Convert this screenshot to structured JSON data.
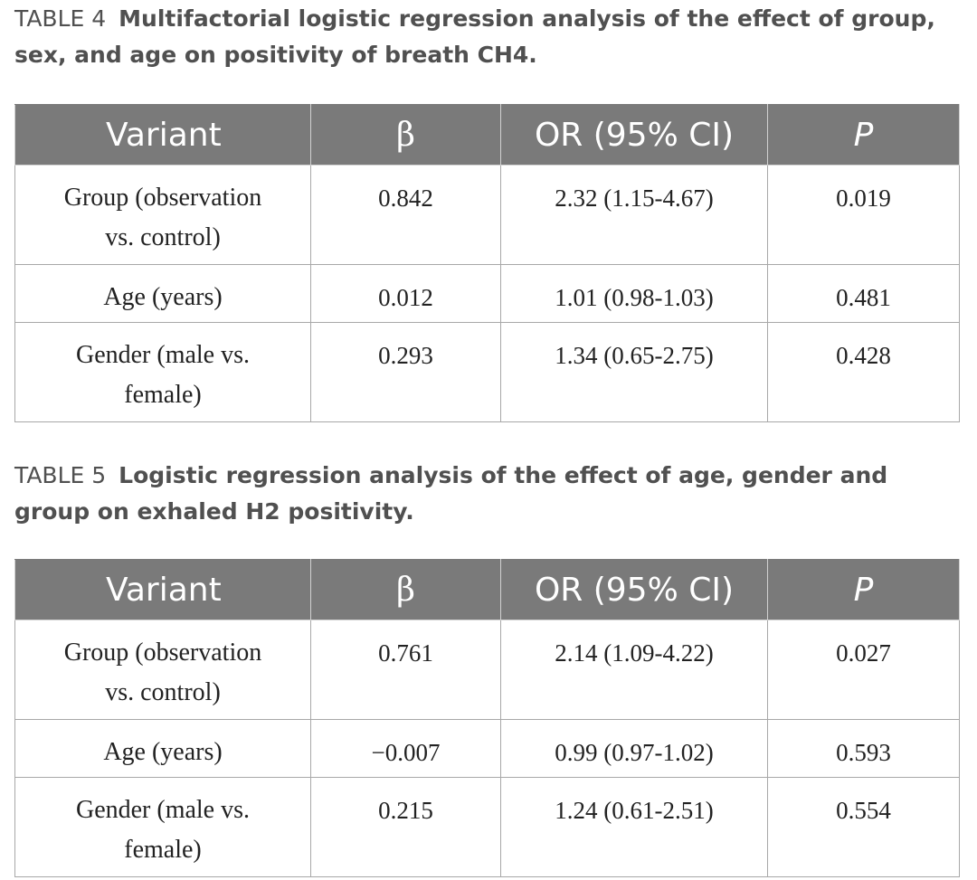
{
  "tables": [
    {
      "label": "TABLE 4",
      "title": "Multifactorial logistic regression analysis of the effect of group, sex, and age on positivity of breath CH4.",
      "headers": [
        "Variant",
        "β",
        "OR (95% CI)",
        "P"
      ],
      "rows": [
        {
          "variant_line1": "Group (observation",
          "variant_line2": "vs. control)",
          "beta": "0.842",
          "or_ci": "2.32 (1.15-4.67)",
          "p": "0.019"
        },
        {
          "variant_line1": "Age (years)",
          "variant_line2": "",
          "beta": "0.012",
          "or_ci": "1.01 (0.98-1.03)",
          "p": "0.481"
        },
        {
          "variant_line1": "Gender (male vs.",
          "variant_line2": "female)",
          "beta": "0.293",
          "or_ci": "1.34 (0.65-2.75)",
          "p": "0.428"
        }
      ]
    },
    {
      "label": "TABLE 5",
      "title": "Logistic regression analysis of the effect of age, gender and group on exhaled H2 positivity.",
      "headers": [
        "Variant",
        "β",
        "OR (95% CI)",
        "P"
      ],
      "rows": [
        {
          "variant_line1": "Group (observation",
          "variant_line2": "vs. control)",
          "beta": "0.761",
          "or_ci": "2.14 (1.09-4.22)",
          "p": "0.027"
        },
        {
          "variant_line1": "Age (years)",
          "variant_line2": "",
          "beta": "−0.007",
          "or_ci": "0.99 (0.97-1.02)",
          "p": "0.593"
        },
        {
          "variant_line1": "Gender (male vs.",
          "variant_line2": "female)",
          "beta": "0.215",
          "or_ci": "1.24 (0.61-2.51)",
          "p": "0.554"
        }
      ]
    }
  ],
  "colors": {
    "header_bg": "#7a7a7a",
    "header_text": "#ffffff",
    "caption_text": "#505050",
    "grid": "#a8a8a8"
  }
}
